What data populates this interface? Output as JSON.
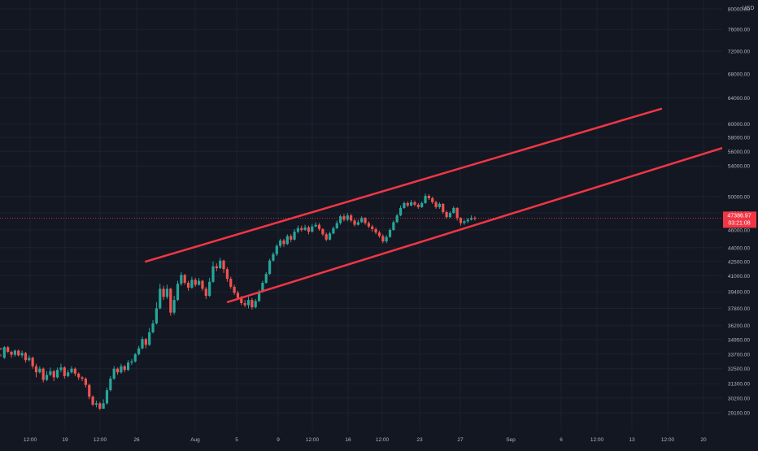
{
  "colors": {
    "background": "#131722",
    "grid": "#1e2230",
    "axis_text": "#b2b5be",
    "up": "#26a69a",
    "down": "#ef5350",
    "channel": "#f23645",
    "price_line": "#f23645",
    "badge_bg": "#f23645",
    "badge_text": "#ffffff"
  },
  "chart_data": {
    "type": "candlestick",
    "currency_label": "USD",
    "scale": "log",
    "y_range": [
      28500,
      82000
    ],
    "y_ticks": [
      "80000.00",
      "76000.00",
      "72000.00",
      "68000.00",
      "64000.00",
      "60000.00",
      "58000.00",
      "56000.00",
      "54000.00",
      "50000.00",
      "48000.00",
      "46000.00",
      "44000.00",
      "42500.00",
      "41000.00",
      "39400.00",
      "37800.00",
      "36200.00",
      "34950.00",
      "33700.00",
      "32500.00",
      "31300.00",
      "30200.00",
      "29100.00"
    ],
    "x_ticks": [
      "12:00",
      "19",
      "12:00",
      "26",
      "Aug",
      "5",
      "9",
      "12:00",
      "16",
      "12:00",
      "23",
      "27",
      "Sep",
      "6",
      "12:00",
      "13",
      "12:00",
      "20"
    ],
    "current_price": "47386.97",
    "countdown": "03:21:08",
    "candles_ohlc": [
      [
        34200,
        34100,
        33700,
        33500
      ],
      [
        33400,
        34300,
        34400,
        33300
      ],
      [
        34300,
        33900,
        34400,
        33800
      ],
      [
        33900,
        33650,
        34000,
        33400
      ],
      [
        33650,
        34000,
        34100,
        33500
      ],
      [
        34000,
        33600,
        34100,
        33500
      ],
      [
        33600,
        33800,
        34000,
        33400
      ],
      [
        33800,
        33200,
        33900,
        33000
      ],
      [
        33200,
        33400,
        33600,
        33100
      ],
      [
        33400,
        32700,
        33500,
        32500
      ],
      [
        32700,
        32200,
        32900,
        31800
      ],
      [
        32200,
        32500,
        32700,
        32100
      ],
      [
        32500,
        31600,
        32600,
        31400
      ],
      [
        31600,
        32000,
        32300,
        31500
      ],
      [
        32000,
        32300,
        32600,
        31900
      ],
      [
        32300,
        31800,
        32400,
        31500
      ],
      [
        31800,
        32400,
        32600,
        31700
      ],
      [
        32400,
        32600,
        32900,
        32200
      ],
      [
        32600,
        31900,
        32700,
        31700
      ],
      [
        31900,
        32200,
        32400,
        31800
      ],
      [
        32200,
        32500,
        32700,
        32100
      ],
      [
        32500,
        32100,
        32600,
        31900
      ],
      [
        32100,
        31800,
        32200,
        31600
      ],
      [
        31800,
        31700,
        31900,
        31500
      ],
      [
        31700,
        31200,
        31800,
        31000
      ],
      [
        31200,
        30300,
        31300,
        30100
      ],
      [
        30300,
        29700,
        30400,
        29600
      ],
      [
        29700,
        29800,
        30000,
        29500
      ],
      [
        29800,
        29400,
        29900,
        29300
      ],
      [
        29400,
        29800,
        30100,
        29400
      ],
      [
        29800,
        30800,
        31000,
        29700
      ],
      [
        30800,
        31700,
        31900,
        30700
      ],
      [
        31700,
        32500,
        32700,
        31600
      ],
      [
        32500,
        32200,
        32600,
        32000
      ],
      [
        32200,
        32700,
        32900,
        32100
      ],
      [
        32700,
        32400,
        32800,
        32200
      ],
      [
        32400,
        33000,
        33200,
        32300
      ],
      [
        33000,
        33100,
        33300,
        32800
      ],
      [
        33100,
        33700,
        33800,
        33000
      ],
      [
        33700,
        34200,
        34400,
        33600
      ],
      [
        34200,
        35000,
        35200,
        34100
      ],
      [
        35000,
        34500,
        35100,
        34200
      ],
      [
        34500,
        35600,
        36000,
        34400
      ],
      [
        35600,
        36400,
        36700,
        35500
      ],
      [
        36400,
        37800,
        38400,
        36300
      ],
      [
        37800,
        39700,
        40200,
        37700
      ],
      [
        39700,
        38900,
        40000,
        38600
      ],
      [
        38900,
        39700,
        40100,
        38700
      ],
      [
        39700,
        37400,
        39800,
        37100
      ],
      [
        37400,
        38600,
        39000,
        37200
      ],
      [
        38600,
        40200,
        40500,
        38500
      ],
      [
        40200,
        41100,
        41400,
        40000
      ],
      [
        41100,
        40300,
        41200,
        40100
      ],
      [
        40300,
        39800,
        40500,
        39500
      ],
      [
        39800,
        40600,
        40900,
        39700
      ],
      [
        40600,
        40100,
        40800,
        39900
      ],
      [
        40100,
        40500,
        40800,
        40000
      ],
      [
        40500,
        39700,
        40600,
        39500
      ],
      [
        39700,
        39000,
        39900,
        38700
      ],
      [
        39000,
        40400,
        40800,
        38900
      ],
      [
        40400,
        42000,
        42500,
        40300
      ],
      [
        42000,
        41800,
        42300,
        41500
      ],
      [
        41800,
        42600,
        42900,
        41700
      ],
      [
        42600,
        41700,
        42700,
        41300
      ],
      [
        41700,
        40700,
        41900,
        40400
      ],
      [
        40700,
        39900,
        40900,
        39700
      ],
      [
        39900,
        39300,
        40100,
        39100
      ],
      [
        39300,
        38800,
        39500,
        38600
      ],
      [
        38800,
        38300,
        39000,
        38100
      ],
      [
        38300,
        38100,
        38600,
        37900
      ],
      [
        38100,
        38600,
        38900,
        37800
      ],
      [
        38600,
        37900,
        38800,
        37700
      ],
      [
        37900,
        38500,
        38700,
        37800
      ],
      [
        38500,
        39400,
        39600,
        38400
      ],
      [
        39400,
        40300,
        40500,
        39300
      ],
      [
        40300,
        41200,
        41400,
        40200
      ],
      [
        41200,
        42600,
        42800,
        41100
      ],
      [
        42600,
        43300,
        43500,
        42500
      ],
      [
        43300,
        44200,
        44400,
        43100
      ],
      [
        44200,
        44800,
        45000,
        44000
      ],
      [
        44800,
        44400,
        45000,
        44100
      ],
      [
        44400,
        45300,
        45500,
        44300
      ],
      [
        45300,
        44900,
        45500,
        44600
      ],
      [
        44900,
        45800,
        46100,
        44800
      ],
      [
        45800,
        46200,
        46500,
        45600
      ],
      [
        46200,
        46000,
        46500,
        45800
      ],
      [
        46000,
        46300,
        46600,
        45900
      ],
      [
        46300,
        45800,
        46500,
        45500
      ],
      [
        45800,
        46400,
        46700,
        45700
      ],
      [
        46400,
        46600,
        46900,
        46300
      ],
      [
        46600,
        46100,
        46800,
        45900
      ],
      [
        46100,
        45500,
        46200,
        45300
      ],
      [
        45500,
        44900,
        45700,
        44700
      ],
      [
        44900,
        45600,
        45800,
        44800
      ],
      [
        45600,
        46200,
        46400,
        45500
      ],
      [
        46200,
        46800,
        47100,
        46100
      ],
      [
        46800,
        47600,
        47800,
        46600
      ],
      [
        47600,
        47200,
        47900,
        47000
      ],
      [
        47200,
        47700,
        48000,
        47000
      ],
      [
        47700,
        47100,
        47900,
        46900
      ],
      [
        47100,
        46600,
        47300,
        46400
      ],
      [
        46600,
        46900,
        47200,
        46500
      ],
      [
        46900,
        47400,
        47600,
        46800
      ],
      [
        47400,
        46800,
        47500,
        46600
      ],
      [
        46800,
        46400,
        47000,
        46200
      ],
      [
        46400,
        46100,
        46600,
        45800
      ],
      [
        46100,
        45700,
        46300,
        45500
      ],
      [
        45700,
        45300,
        45900,
        45100
      ],
      [
        45300,
        44700,
        45500,
        44500
      ],
      [
        44700,
        45200,
        45400,
        44500
      ],
      [
        45200,
        46000,
        46200,
        45100
      ],
      [
        46000,
        46900,
        47100,
        45900
      ],
      [
        46900,
        47700,
        47900,
        46800
      ],
      [
        47700,
        48600,
        48900,
        47600
      ],
      [
        48600,
        49200,
        49400,
        48500
      ],
      [
        49200,
        48900,
        49400,
        48700
      ],
      [
        48900,
        49300,
        49600,
        48800
      ],
      [
        49300,
        49000,
        49500,
        48800
      ],
      [
        49000,
        48700,
        49200,
        48500
      ],
      [
        48700,
        49200,
        49400,
        48600
      ],
      [
        49200,
        50100,
        50400,
        49100
      ],
      [
        50100,
        49800,
        50300,
        49600
      ],
      [
        49800,
        49300,
        50000,
        49100
      ],
      [
        49300,
        48700,
        49500,
        48500
      ],
      [
        48700,
        49100,
        49300,
        48500
      ],
      [
        49100,
        48100,
        49200,
        47900
      ],
      [
        48100,
        47500,
        48300,
        47300
      ],
      [
        47500,
        48000,
        48200,
        47400
      ],
      [
        48000,
        48600,
        48800,
        47900
      ],
      [
        48600,
        47400,
        48700,
        47100
      ],
      [
        47400,
        46800,
        47500,
        46500
      ],
      [
        46800,
        47000,
        47200,
        46600
      ],
      [
        47000,
        47200,
        47400,
        46800
      ],
      [
        47200,
        47400,
        47700,
        47100
      ],
      [
        47400,
        47387,
        47600,
        47100
      ]
    ],
    "channel_lines": [
      {
        "name": "upper",
        "start": {
          "x": "Jul 29",
          "y": 42500
        },
        "end": {
          "x": "Sep 11",
          "y": 62300
        }
      },
      {
        "name": "lower",
        "start": {
          "x": "Aug 5",
          "y": 38400
        },
        "end": {
          "x": "Sep 18",
          "y": 57400
        }
      }
    ]
  }
}
